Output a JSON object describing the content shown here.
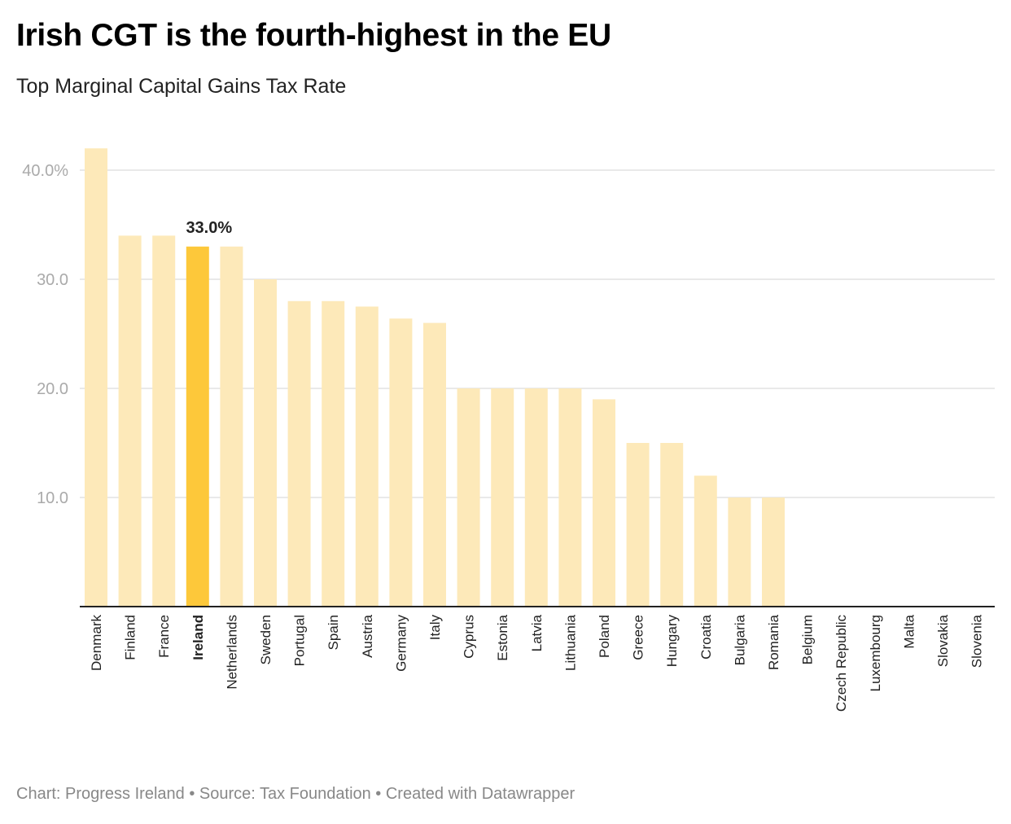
{
  "title": "Irish CGT is the fourth-highest in the EU",
  "subtitle": "Top Marginal Capital Gains Tax Rate",
  "footer": "Chart: Progress Ireland • Source: Tax Foundation • Created with Datawrapper",
  "colors": {
    "bar": "#fde9b9",
    "highlight": "#fdc83a",
    "grid": "#e2e2e2",
    "axis": "#222222"
  },
  "chart_data": {
    "type": "bar",
    "title": "Irish CGT is the fourth-highest in the EU",
    "subtitle": "Top Marginal Capital Gains Tax Rate",
    "xlabel": "",
    "ylabel": "",
    "ylim": [
      0,
      42
    ],
    "yticks": [
      10,
      20,
      30,
      40
    ],
    "ytick_labels": [
      "10.0",
      "20.0",
      "30.0",
      "40.0%"
    ],
    "grid": true,
    "highlight": "Ireland",
    "highlight_label": "33.0%",
    "categories": [
      "Denmark",
      "Finland",
      "France",
      "Ireland",
      "Netherlands",
      "Sweden",
      "Portugal",
      "Spain",
      "Austria",
      "Germany",
      "Italy",
      "Cyprus",
      "Estonia",
      "Latvia",
      "Lithuania",
      "Poland",
      "Greece",
      "Hungary",
      "Croatia",
      "Bulgaria",
      "Romania",
      "Belgium",
      "Czech Republic",
      "Luxembourg",
      "Malta",
      "Slovakia",
      "Slovenia"
    ],
    "values": [
      42,
      34,
      34,
      33,
      33,
      30,
      28,
      28,
      27.5,
      26.4,
      26,
      20,
      20,
      20,
      20,
      19,
      15,
      15,
      12,
      10,
      10,
      0,
      0,
      0,
      0,
      0,
      0
    ]
  }
}
